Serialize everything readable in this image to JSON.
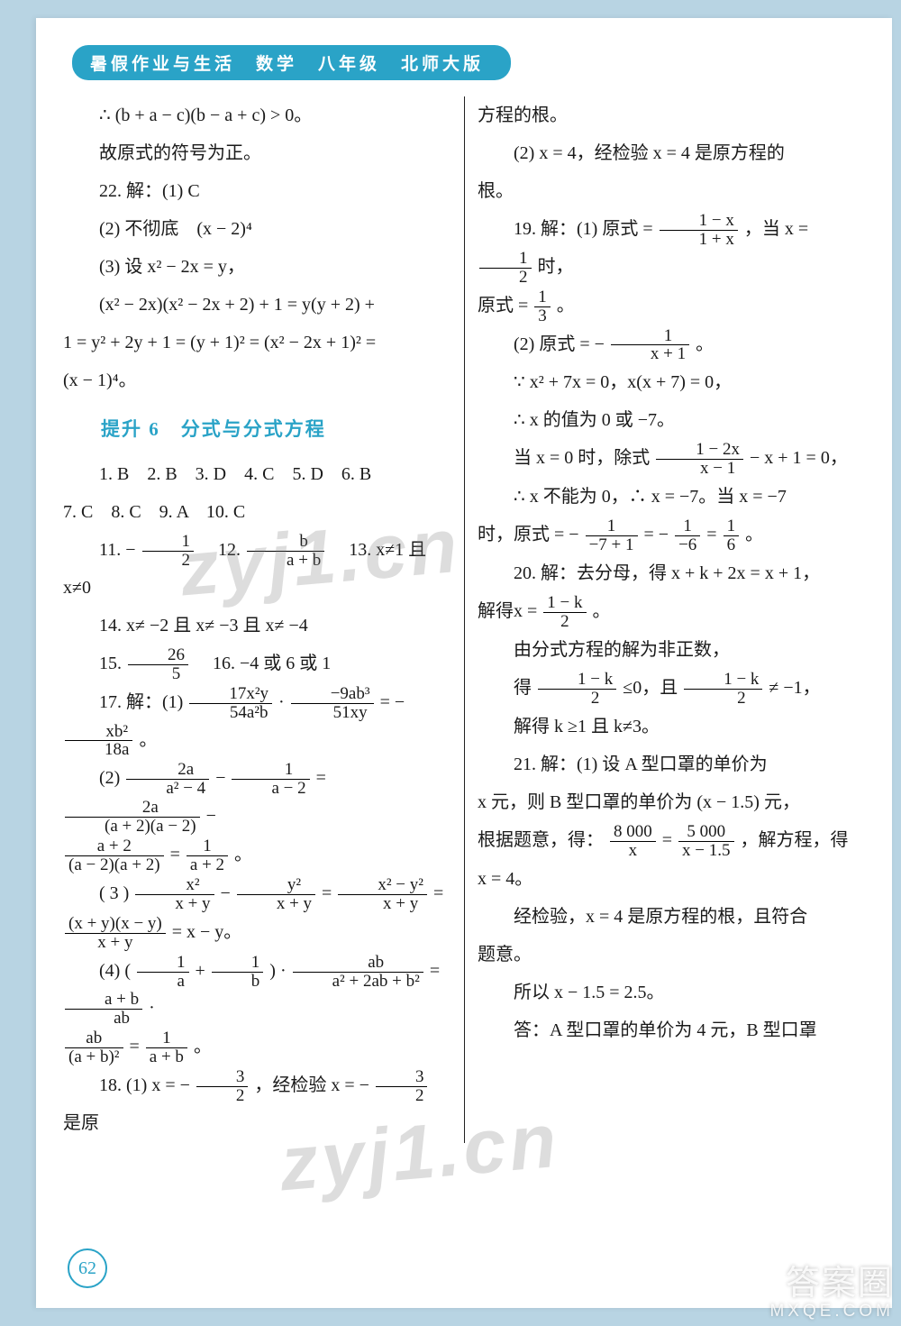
{
  "header": "暑假作业与生活　数学　八年级　北师大版",
  "left": {
    "l1": "∴ (b + a − c)(b − a + c) > 0。",
    "l2": "故原式的符号为正。",
    "l3": "22. 解：(1) C",
    "l4": "(2) 不彻底　(x − 2)⁴",
    "l5": "(3) 设 x² − 2x = y，",
    "l6": "(x² − 2x)(x² − 2x + 2) + 1 = y(y + 2) +",
    "l7": "1 = y² + 2y + 1 = (y + 1)² = (x² − 2x + 1)² =",
    "l8": "(x − 1)⁴。",
    "section": "提升 6　分式与分式方程",
    "mc1": "1. B　2. B　3. D　4. C　5. D　6. B",
    "mc2": "7. C　8. C　9. A　10. C",
    "q11a": "11. −",
    "q11n": "1",
    "q11d": "2",
    "q12a": "　12. ",
    "q12n": "b",
    "q12d": "a + b",
    "q13": "　13. x≠1 且 x≠0",
    "q14": "14. x≠ −2 且 x≠ −3 且 x≠ −4",
    "q15a": "15. ",
    "q15n": "26",
    "q15d": "5",
    "q16": "　16. −4 或 6 或 1",
    "q17a": "17. 解：(1) ",
    "q17f1n": "17x²y",
    "q17f1d": "54a²b",
    "q17mid": " · ",
    "q17f2n": "−9ab³",
    "q17f2d": "51xy",
    "q17eq": " = −",
    "q17f3n": "xb²",
    "q17f3d": "18a",
    "q17end": "。",
    "q172a": "(2) ",
    "q172f1n": "2a",
    "q172f1d": "a² − 4",
    "q172m1": " − ",
    "q172f2n": "1",
    "q172f2d": "a − 2",
    "q172m2": " = ",
    "q172f3n": "2a",
    "q172f3d": "(a + 2)(a − 2)",
    "q172m3": " −",
    "q172bfn": "a + 2",
    "q172bfd": "(a − 2)(a + 2)",
    "q172beq": " = ",
    "q172brn": "1",
    "q172brd": "a + 2",
    "q172bend": "。",
    "q173a": "( 3 ) ",
    "q173f1n": "x²",
    "q173f1d": "x + y",
    "q173m1": " − ",
    "q173f2n": "y²",
    "q173f2d": "x + y",
    "q173m2": " = ",
    "q173f3n": "x² − y²",
    "q173f3d": "x + y",
    "q173m3": " =",
    "q173bfn": "(x + y)(x − y)",
    "q173bfd": "x + y",
    "q173beq": " = x − y。",
    "q174a": "(4) ",
    "q174p1a": "(",
    "q174f1n": "1",
    "q174f1d": "a",
    "q174plus": " + ",
    "q174f2n": "1",
    "q174f2d": "b",
    "q174p1b": ")",
    "q174dot": " · ",
    "q174f3n": "ab",
    "q174f3d": "a² + 2ab + b²",
    "q174eq": " = ",
    "q174f4n": "a + b",
    "q174f4d": "ab",
    "q174end": " ·",
    "q174bfn": "ab",
    "q174bfd": "(a + b)²",
    "q174beq": " = ",
    "q174brn": "1",
    "q174brd": "a + b",
    "q174bend": "。",
    "q18a": "18. (1) x = −",
    "q18n": "3",
    "q18d": "2",
    "q18m": "，经检验 x = −",
    "q18e": "是原"
  },
  "right": {
    "r0": "方程的根。",
    "r1": "(2) x = 4，经检验 x = 4 是原方程的",
    "r1b": "根。",
    "r19a": "19. 解：(1) 原式 = ",
    "r19n": "1 − x",
    "r19d": "1 + x",
    "r19m": "，当 x = ",
    "r19hn": "1",
    "r19hd": "2",
    "r19e": "时，",
    "r19ba": "原式 = ",
    "r19bn": "1",
    "r19bd": "3",
    "r19be": "。",
    "r192a": "(2) 原式 = −",
    "r192n": "1",
    "r192d": "x + 1",
    "r192e": "。",
    "r193": "∵ x² + 7x = 0，x(x + 7) = 0，",
    "r194": "∴ x 的值为 0 或 −7。",
    "r195a": "当 x = 0 时，除式",
    "r195n": "1 − 2x",
    "r195d": "x − 1",
    "r195e": " − x + 1 = 0，",
    "r196": "∴ x 不能为 0，∴ x = −7。当 x = −7",
    "r197a": "时，原式 = −",
    "r197n1": "1",
    "r197d1": "−7 + 1",
    "r197m": " = −",
    "r197n2": "1",
    "r197d2": "−6",
    "r197eq": " = ",
    "r197n3": "1",
    "r197d3": "6",
    "r197e": "。",
    "r20a": "20. 解：去分母，得 x + k + 2x = x + 1，",
    "r20ba": "解得x = ",
    "r20bn": "1 − k",
    "r20bd": "2",
    "r20be": "。",
    "r20c": "由分式方程的解为非正数，",
    "r20da": "得",
    "r20dn1": "1 − k",
    "r20dd1": "2",
    "r20dm": "≤0，且",
    "r20dn2": "1 − k",
    "r20dd2": "2",
    "r20de": "≠ −1，",
    "r20e": "解得 k ≥1 且 k≠3。",
    "r21a": "21. 解：(1) 设 A 型口罩的单价为",
    "r21b": "x 元，则 B 型口罩的单价为 (x − 1.5) 元，",
    "r21ca": "根据题意，得：",
    "r21cn1": "8 000",
    "r21cd1": "x",
    "r21cm": " = ",
    "r21cn2": "5 000",
    "r21cd2": "x − 1.5",
    "r21ce": "，解方程，得",
    "r21d": "x = 4。",
    "r21e": "经检验，x = 4 是原方程的根，且符合",
    "r21f": "题意。",
    "r21g": "所以 x − 1.5 = 2.5。",
    "r21h": "答：A 型口罩的单价为 4 元，B 型口罩"
  },
  "pageNumber": "62",
  "watermark": "zyj1.cn",
  "cornerBrand": "答案圈",
  "cornerUrl": "MXQE.COM"
}
